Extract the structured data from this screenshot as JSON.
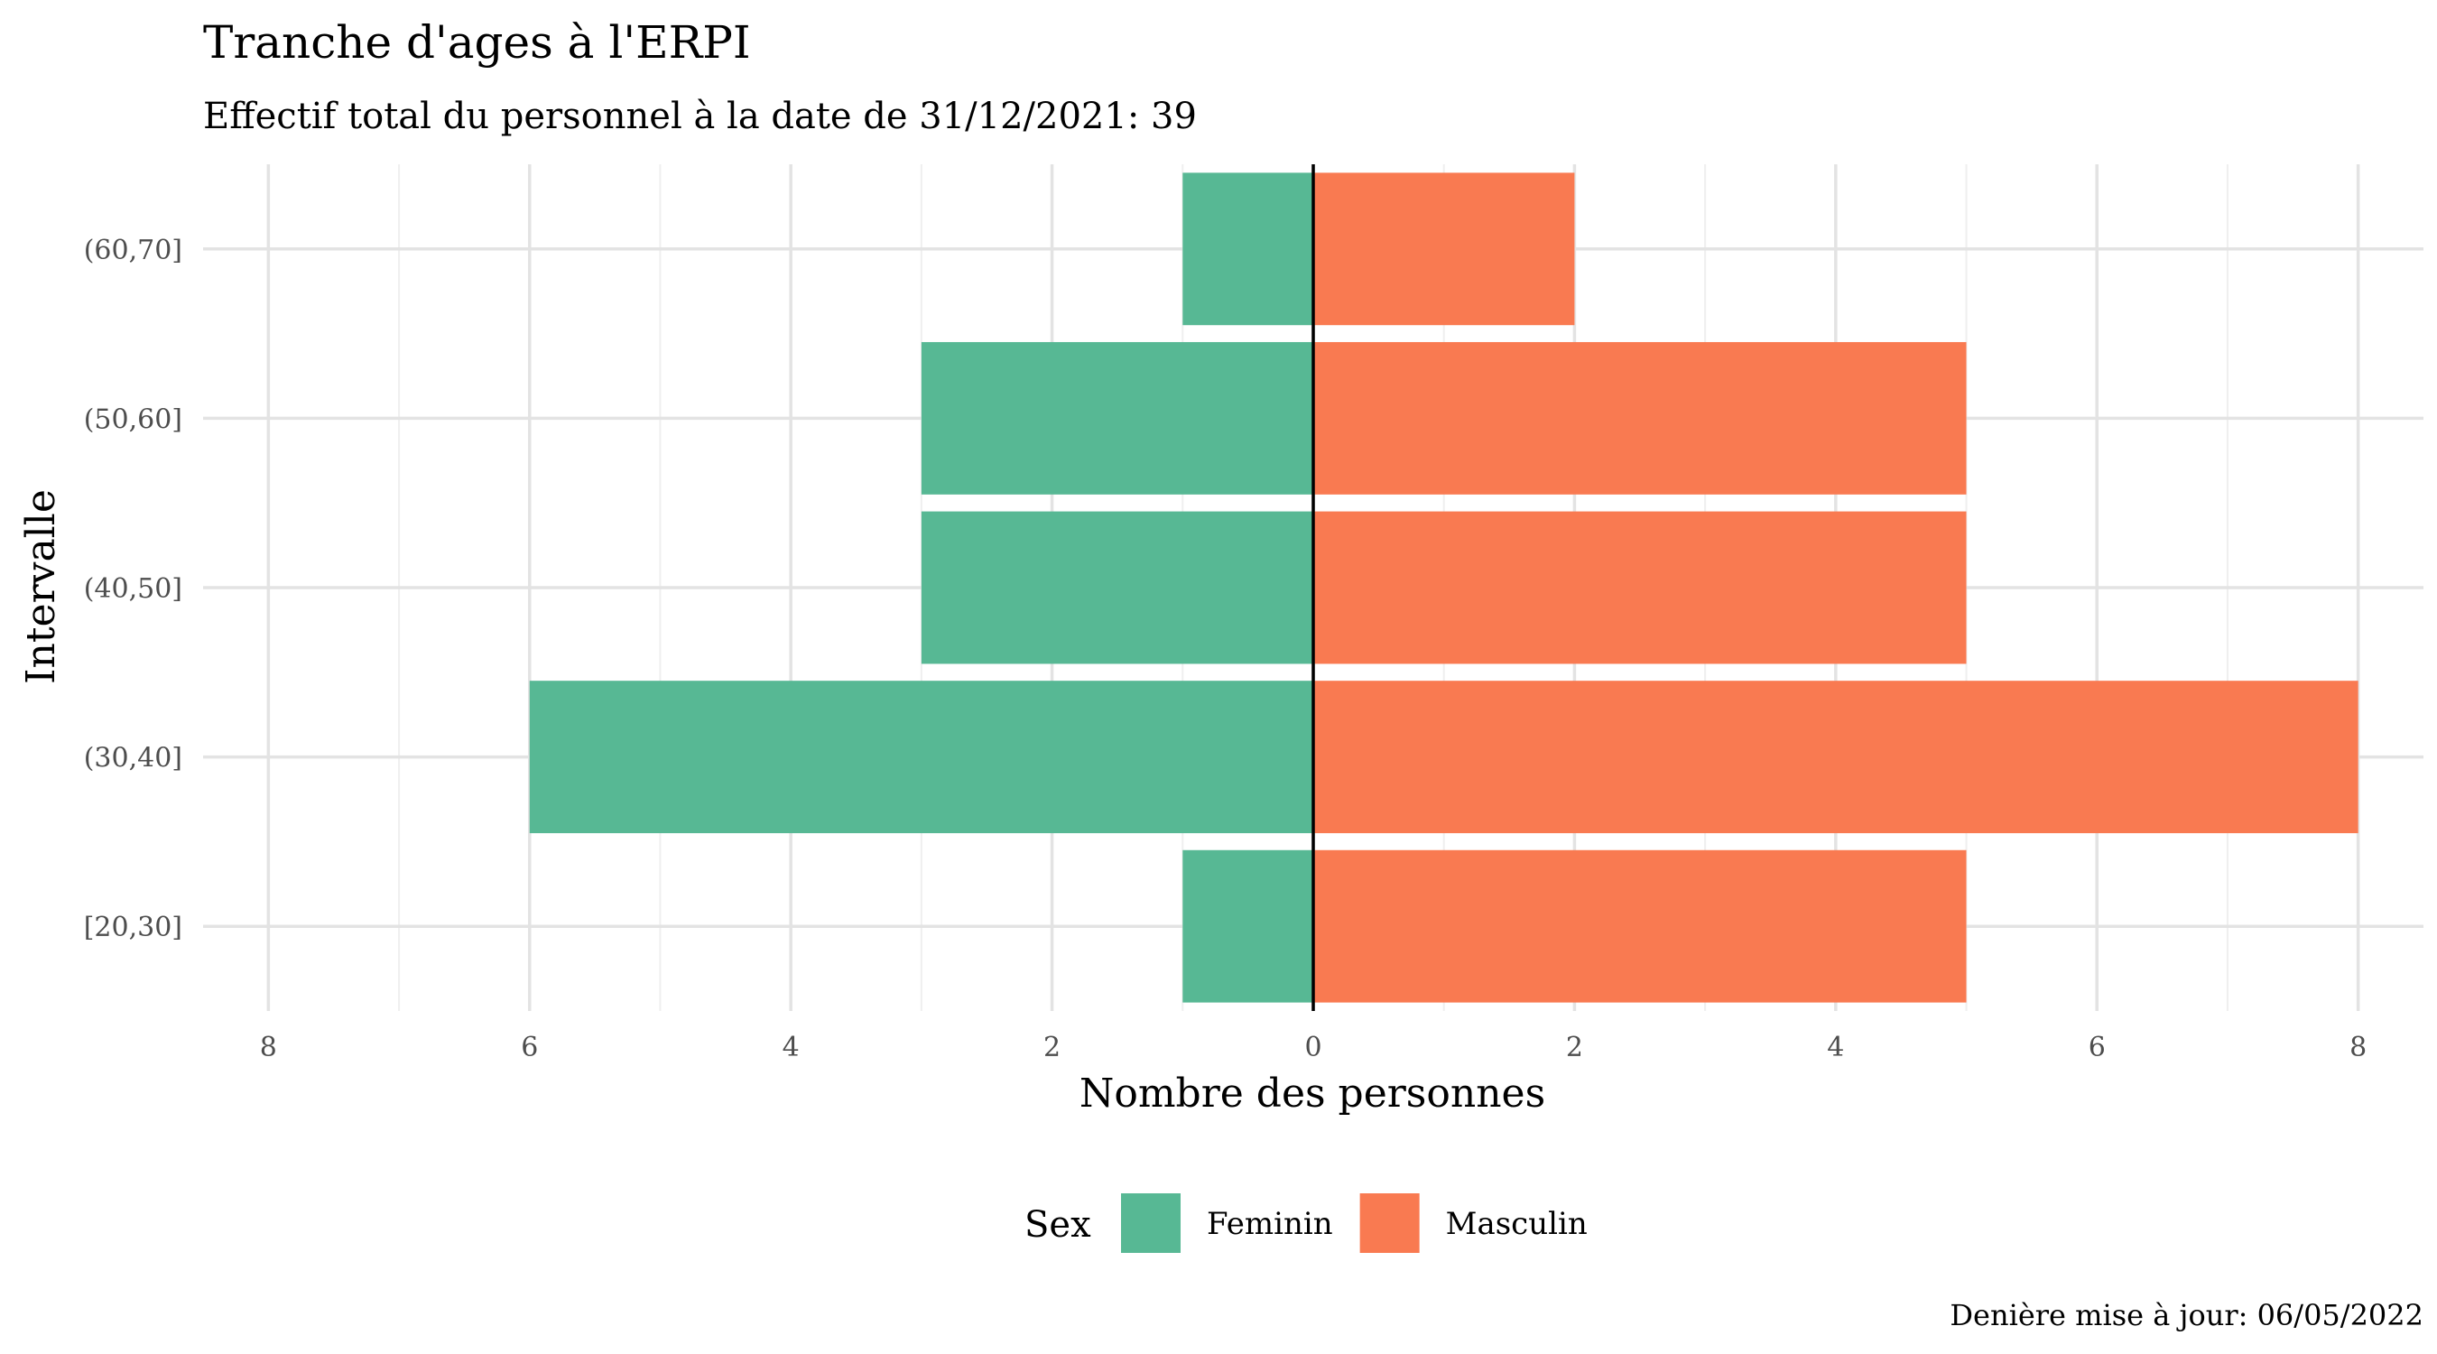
{
  "chart_data": {
    "type": "bar",
    "orientation": "horizontal",
    "title": "Tranche d'ages à l'ERPI",
    "subtitle": "Effectif total du personnel à la date de 31/12/2021: 39",
    "xlabel": "Nombre des personnes",
    "ylabel": "Intervalle",
    "caption": "Denière mise à jour: 06/05/2022",
    "categories": [
      "[20,30]",
      "(30,40]",
      "(40,50]",
      "(50,60]",
      "(60,70]"
    ],
    "series": [
      {
        "name": "Feminin",
        "values": [
          1,
          6,
          3,
          3,
          1
        ],
        "color": "#57b894"
      },
      {
        "name": "Masculin",
        "values": [
          5,
          8,
          5,
          5,
          2
        ],
        "color": "#f97a51"
      }
    ],
    "xlim": [
      -8.5,
      8.5
    ],
    "x_ticks": [
      -8,
      -6,
      -4,
      -2,
      0,
      2,
      4,
      6,
      8
    ],
    "x_tick_labels": [
      "8",
      "6",
      "4",
      "2",
      "0",
      "2",
      "4",
      "6",
      "8"
    ],
    "grid": true,
    "legend": {
      "title": "Sex",
      "position": "bottom"
    }
  }
}
